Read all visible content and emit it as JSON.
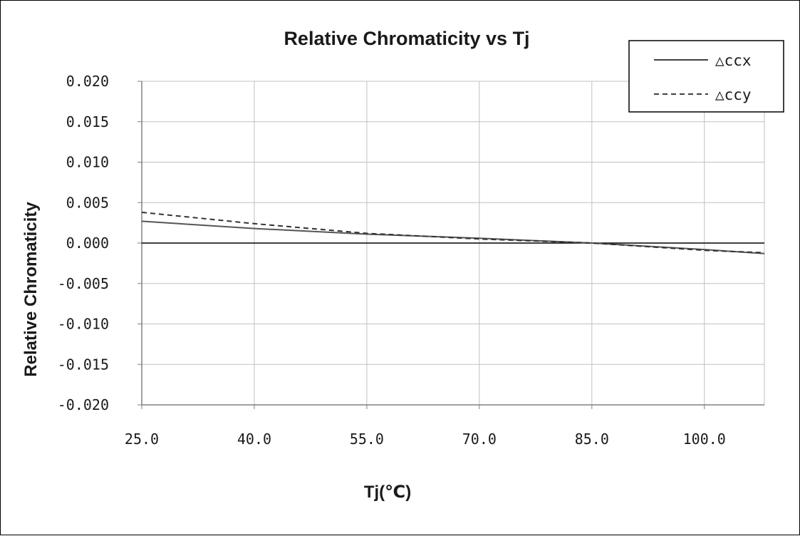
{
  "chart_data": {
    "type": "line",
    "title": "Relative Chromaticity vs Tj",
    "xlabel": "Tj(℃)",
    "ylabel": "Relative Chromaticity",
    "xlim": [
      25.0,
      108.0
    ],
    "ylim": [
      -0.02,
      0.02
    ],
    "x_ticks": [
      25.0,
      40.0,
      55.0,
      70.0,
      85.0,
      100.0
    ],
    "x_tick_labels": [
      "25.0",
      "40.0",
      "55.0",
      "70.0",
      "85.0",
      "100.0"
    ],
    "y_ticks": [
      0.02,
      0.015,
      0.01,
      0.005,
      0.0,
      -0.005,
      -0.01,
      -0.015,
      -0.02
    ],
    "y_tick_labels": [
      "0.020",
      "0.015",
      "0.010",
      "0.005",
      "0.000",
      "-0.005",
      "-0.010",
      "-0.015",
      "-0.020"
    ],
    "grid": true,
    "legend_position": "top-right",
    "series": [
      {
        "name": "△ccx",
        "style": "solid",
        "color": "#555555",
        "x": [
          25.0,
          40.0,
          55.0,
          70.0,
          85.0,
          100.0,
          108.0
        ],
        "y": [
          0.0027,
          0.0018,
          0.0011,
          0.0006,
          0.0,
          -0.0008,
          -0.0013
        ]
      },
      {
        "name": "△ccy",
        "style": "dashed",
        "color": "#333333",
        "x": [
          25.0,
          40.0,
          55.0,
          70.0,
          85.0,
          100.0,
          108.0
        ],
        "y": [
          0.0038,
          0.0024,
          0.0012,
          0.0005,
          0.0,
          -0.0009,
          -0.0012
        ]
      }
    ]
  },
  "colors": {
    "grid": "#c0c0c0",
    "axis": "#808080",
    "zero_line": "#000000",
    "frame": "#000000"
  }
}
